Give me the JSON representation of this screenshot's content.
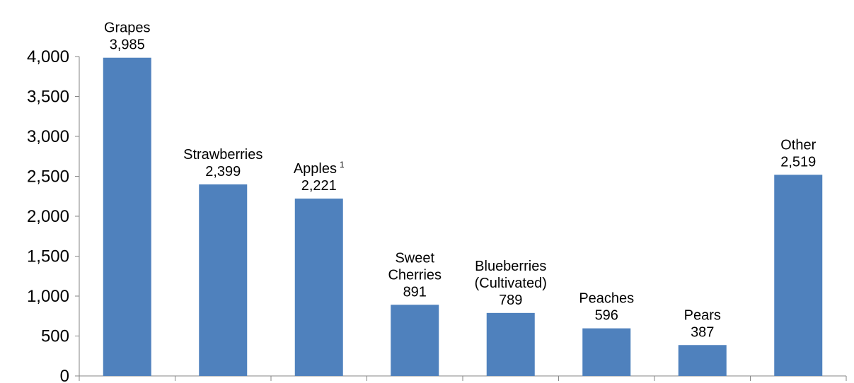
{
  "chart_data": {
    "type": "bar",
    "title": "",
    "xlabel": "",
    "ylabel": "",
    "ylim": [
      0,
      4000
    ],
    "yticks": [
      "0",
      "500",
      "1,000",
      "1,500",
      "2,000",
      "2,500",
      "3,000",
      "3,500",
      "4,000"
    ],
    "grid": false,
    "legend": "none",
    "bar_color": "#4f81bd",
    "categories": [
      {
        "lines": [
          "Grapes"
        ],
        "sup": "",
        "value": 3985,
        "value_label": "3,985"
      },
      {
        "lines": [
          "Strawberries"
        ],
        "sup": "",
        "value": 2399,
        "value_label": "2,399"
      },
      {
        "lines": [
          "Apples"
        ],
        "sup": "1",
        "value": 2221,
        "value_label": "2,221"
      },
      {
        "lines": [
          "Sweet",
          "Cherries"
        ],
        "sup": "",
        "value": 891,
        "value_label": "891"
      },
      {
        "lines": [
          "Blueberries",
          "(Cultivated)"
        ],
        "sup": "",
        "value": 789,
        "value_label": "789"
      },
      {
        "lines": [
          "Peaches"
        ],
        "sup": "",
        "value": 596,
        "value_label": "596"
      },
      {
        "lines": [
          "Pears"
        ],
        "sup": "",
        "value": 387,
        "value_label": "387"
      },
      {
        "lines": [
          "Other"
        ],
        "sup": "",
        "value": 2519,
        "value_label": "2,519"
      }
    ]
  }
}
